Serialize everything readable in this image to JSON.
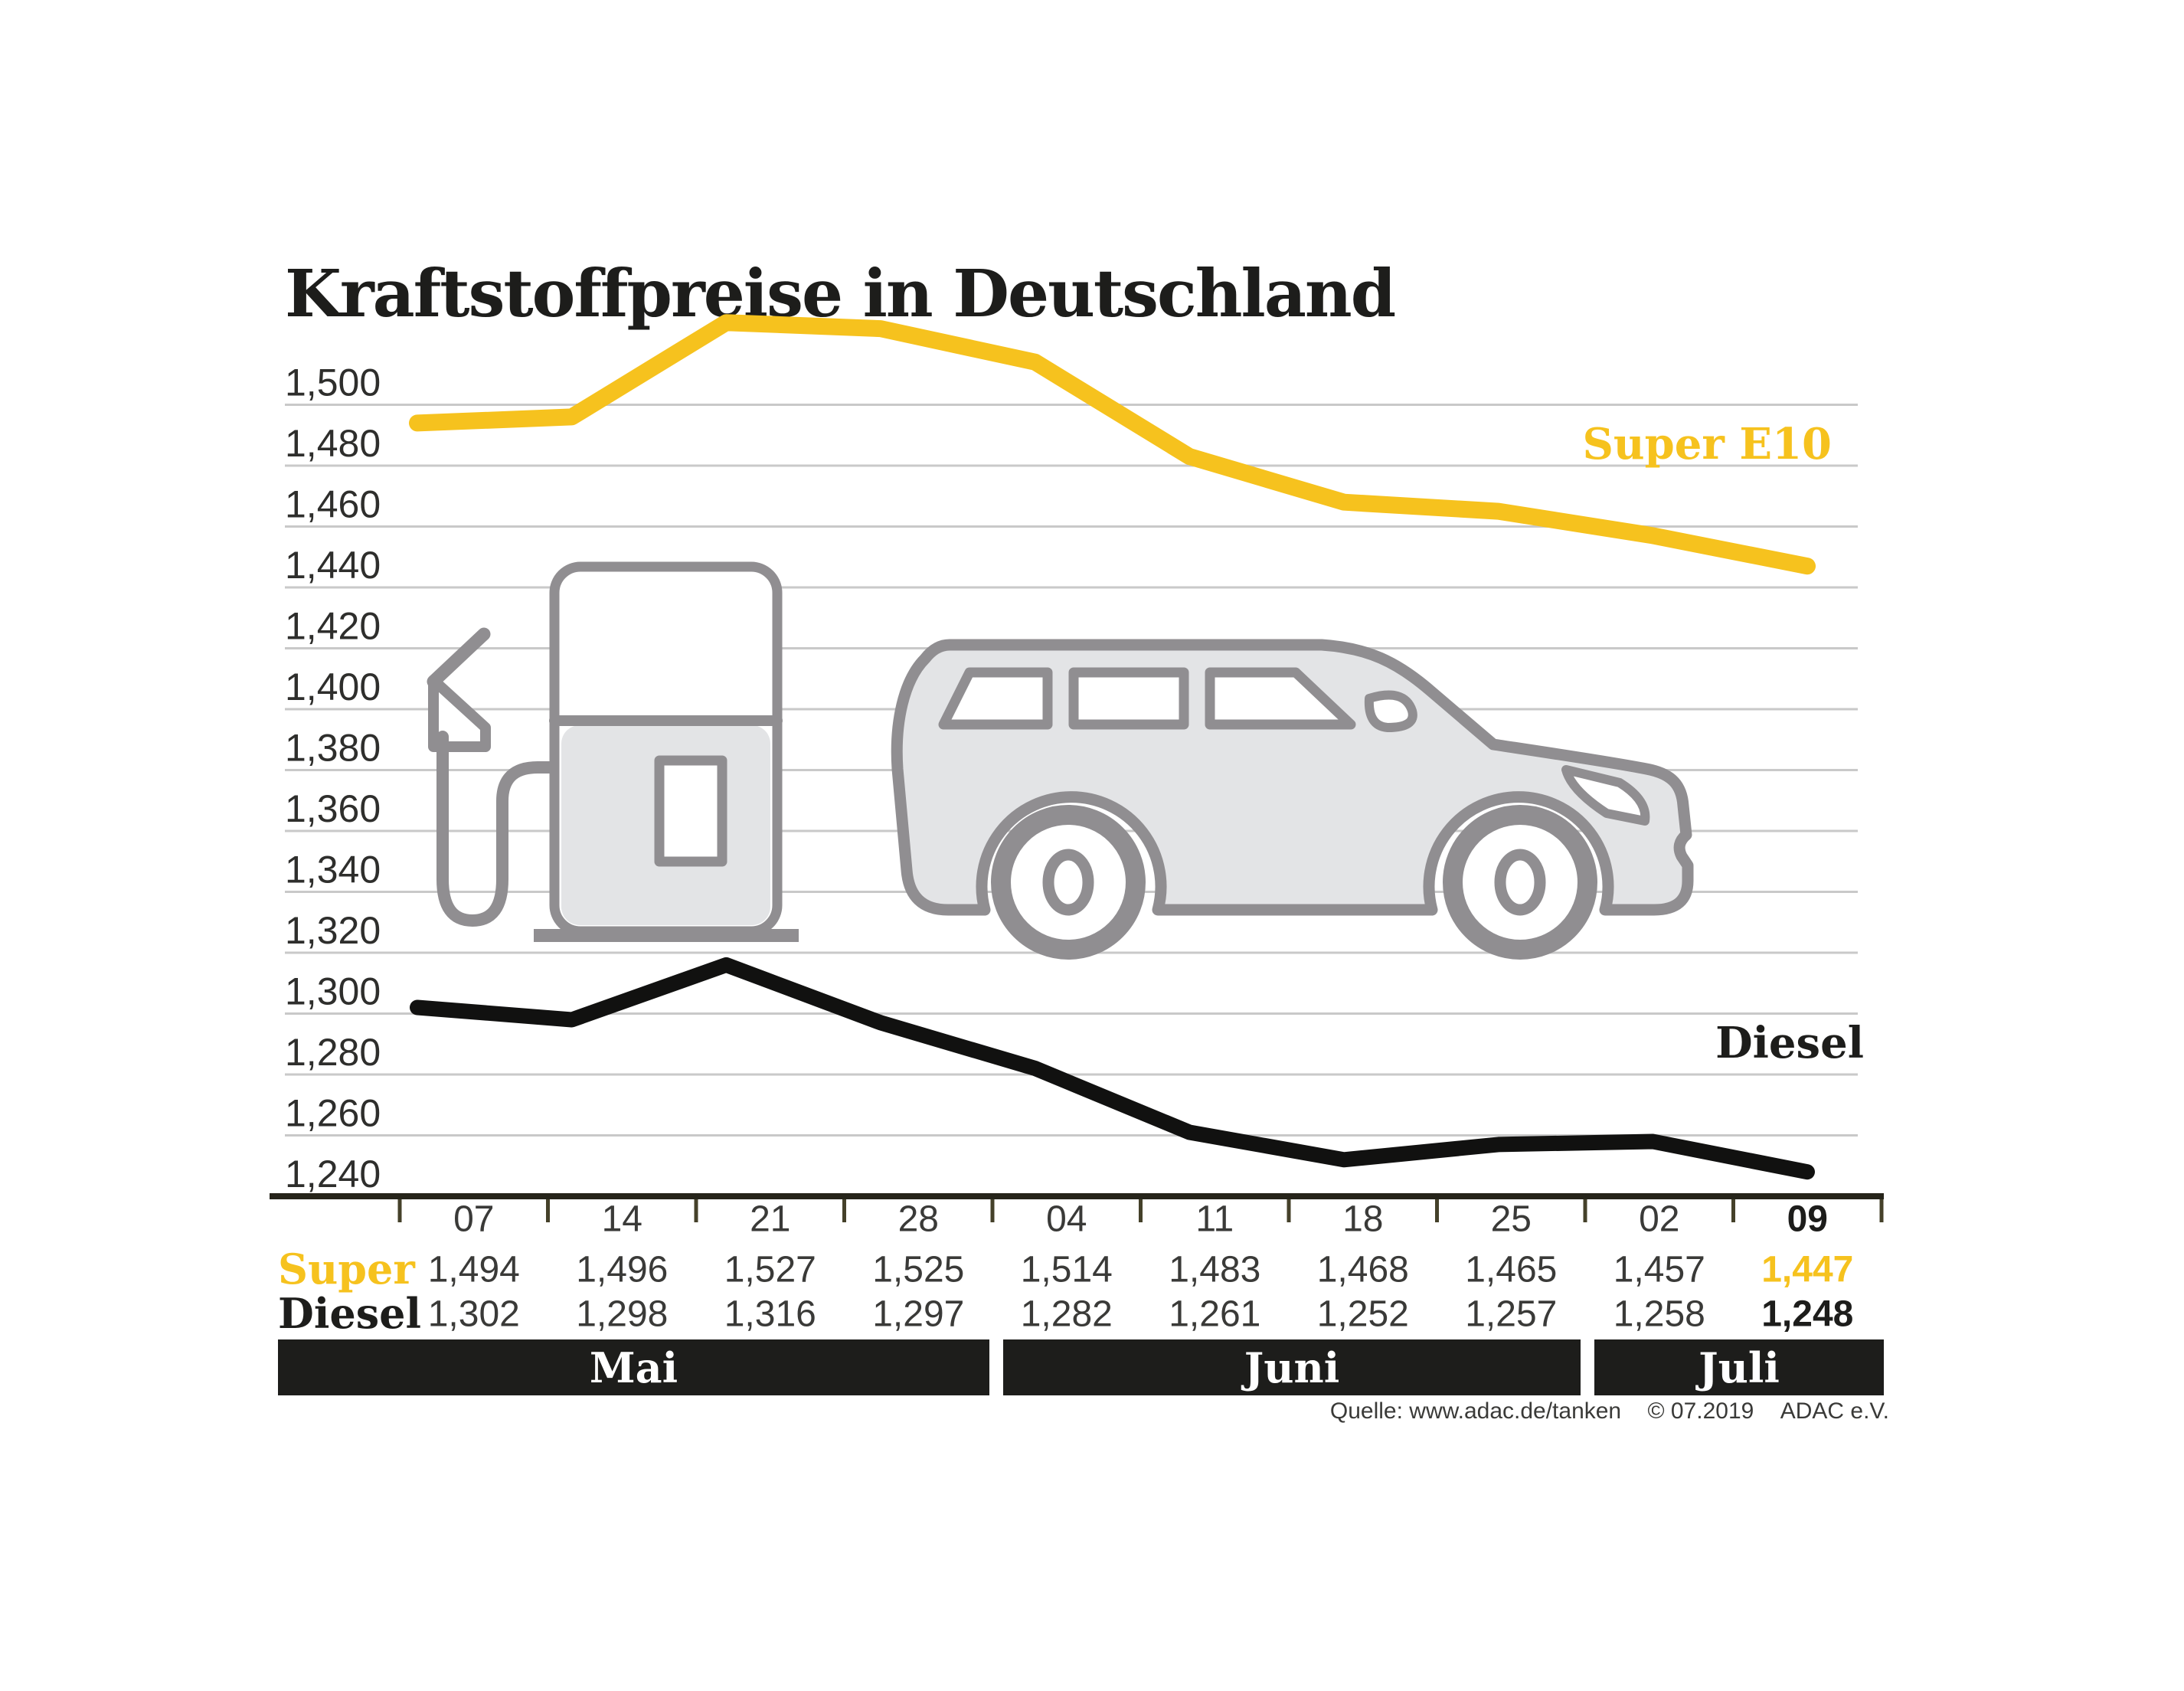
{
  "title": "Kraftstoffpreise in Deutschland",
  "source": {
    "quelle": "Quelle: www.adac.de/tanken",
    "copyright": "© 07.2019",
    "org": "ADAC e.V."
  },
  "colors": {
    "accent_yellow": "#F6C21E",
    "ink": "#1D1D1B",
    "grid": "#C9C9C9",
    "axis": "#26241A",
    "tick": "#45412A",
    "text_gray": "#3A3A38",
    "y_label": "#2E2E2C",
    "month_bar": "#1D1D1B",
    "illustration_stroke": "#908E91",
    "illustration_fill": "#E3E4E6"
  },
  "chart_data": {
    "type": "line",
    "title": "Kraftstoffpreise in Deutschland",
    "x": [
      "07",
      "14",
      "21",
      "28",
      "04",
      "11",
      "18",
      "25",
      "02",
      "09"
    ],
    "months": [
      {
        "label": "Mai",
        "columns": [
          "07",
          "14",
          "21",
          "28"
        ]
      },
      {
        "label": "Juni",
        "columns": [
          "04",
          "11",
          "18",
          "25"
        ]
      },
      {
        "label": "Juli",
        "columns": [
          "02",
          "09"
        ]
      }
    ],
    "ylim": [
      1.24,
      1.54
    ],
    "grid": true,
    "y_ticks": [
      {
        "value": 1.5,
        "label": "1,500"
      },
      {
        "value": 1.48,
        "label": "1,480"
      },
      {
        "value": 1.46,
        "label": "1,460"
      },
      {
        "value": 1.44,
        "label": "1,440"
      },
      {
        "value": 1.42,
        "label": "1,420"
      },
      {
        "value": 1.4,
        "label": "1,400"
      },
      {
        "value": 1.38,
        "label": "1,380"
      },
      {
        "value": 1.36,
        "label": "1,360"
      },
      {
        "value": 1.34,
        "label": "1,340"
      },
      {
        "value": 1.32,
        "label": "1,320"
      },
      {
        "value": 1.3,
        "label": "1,300"
      },
      {
        "value": 1.28,
        "label": "1,280"
      },
      {
        "value": 1.26,
        "label": "1,260"
      },
      {
        "value": 1.24,
        "label": "1,240"
      }
    ],
    "series": [
      {
        "name": "Super E10",
        "row_label": "Super",
        "color": "#F6C21E",
        "values": [
          1.494,
          1.496,
          1.527,
          1.525,
          1.514,
          1.483,
          1.468,
          1.465,
          1.457,
          1.447
        ],
        "value_labels": [
          "1,494",
          "1,496",
          "1,527",
          "1,525",
          "1,514",
          "1,483",
          "1,468",
          "1,465",
          "1,457",
          "1,447"
        ]
      },
      {
        "name": "Diesel",
        "row_label": "Diesel",
        "color": "#111110",
        "values": [
          1.302,
          1.298,
          1.316,
          1.297,
          1.282,
          1.261,
          1.252,
          1.257,
          1.258,
          1.248
        ],
        "value_labels": [
          "1,302",
          "1,298",
          "1,316",
          "1,297",
          "1,282",
          "1,261",
          "1,252",
          "1,257",
          "1,258",
          "1,248"
        ]
      }
    ],
    "legend_position": "inline-labels-right"
  }
}
